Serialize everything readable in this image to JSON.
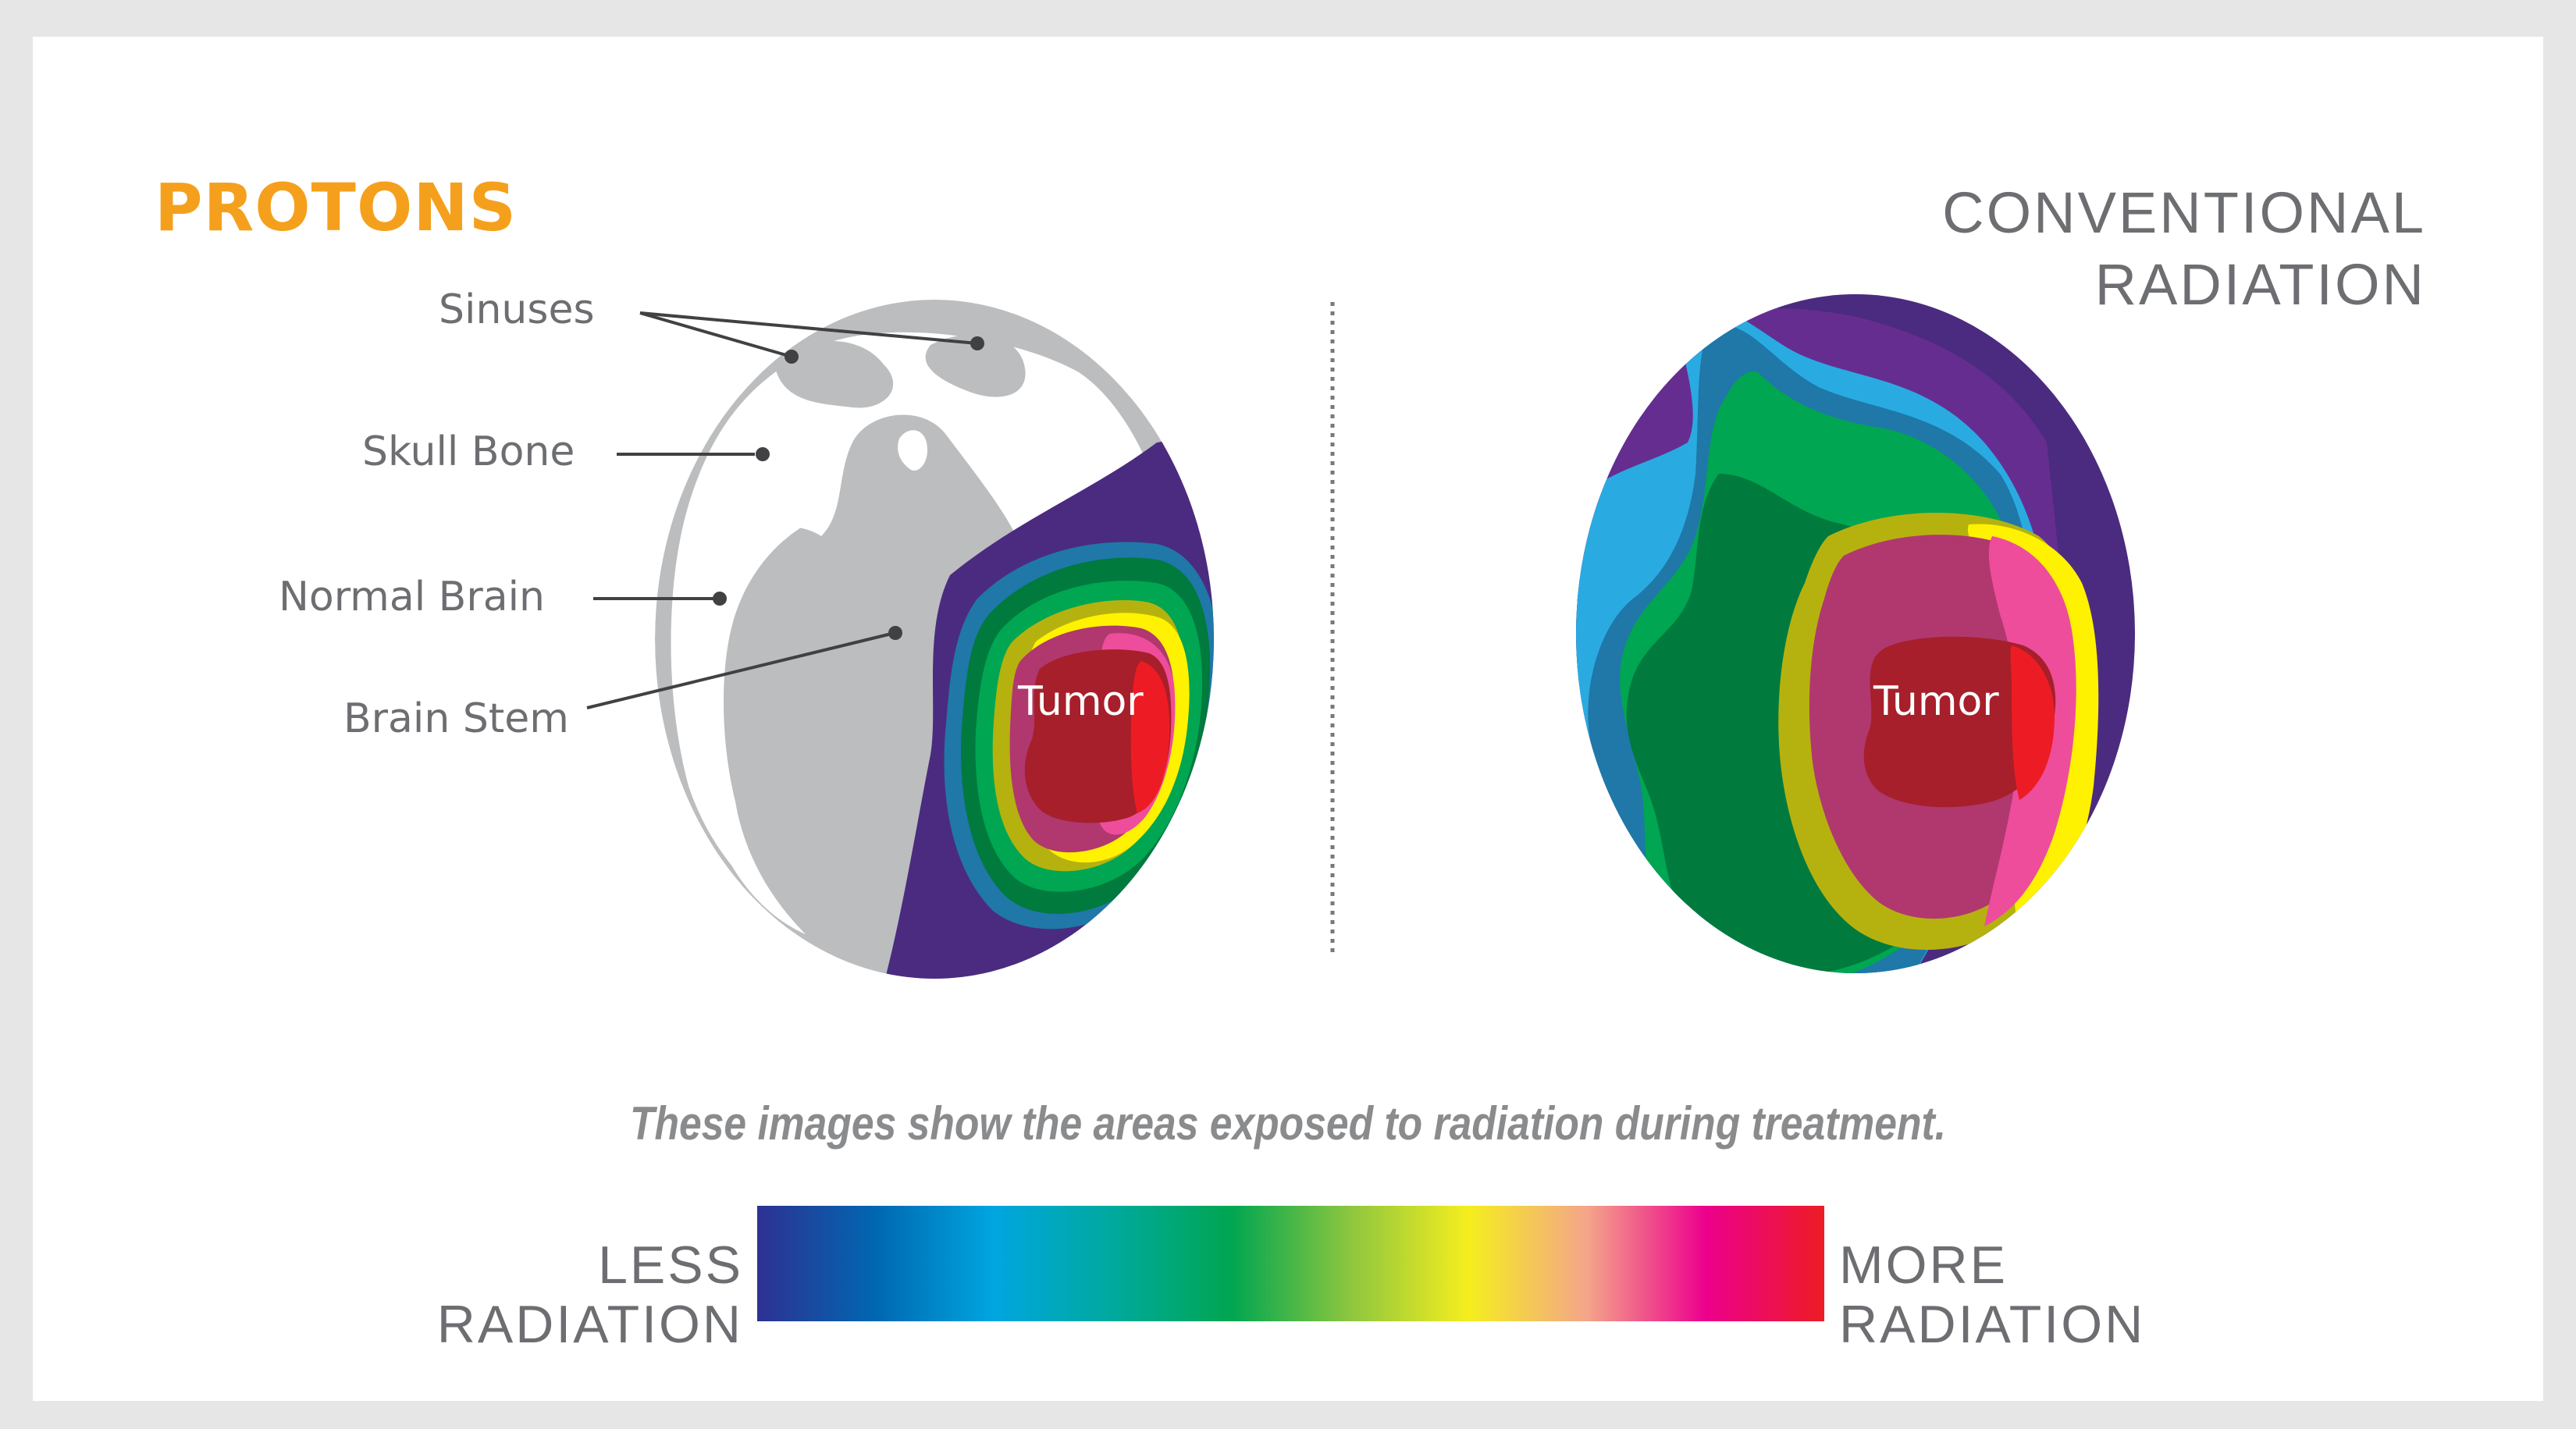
{
  "protons_title": "PROTONS",
  "conventional_title": {
    "line1": "CONVENTIONAL",
    "line2": "RADIATION"
  },
  "labels": {
    "sinuses": "Sinuses",
    "skull_bone": "Skull Bone",
    "normal_brain": "Normal Brain",
    "brain_stem": "Brain Stem"
  },
  "tumor_label": "Tumor",
  "caption": "These images show the areas exposed to radiation during treatment.",
  "legend": {
    "less": {
      "line1": "LESS",
      "line2": "RADIATION"
    },
    "more": {
      "line1": "MORE",
      "line2": "RADIATION"
    },
    "gradient_colors": [
      "#2e3192",
      "#0067b1",
      "#00a6e0",
      "#00a99d",
      "#00a651",
      "#8dc63f",
      "#f5ee1e",
      "#f4a58a",
      "#ec008c",
      "#ed1c24"
    ]
  },
  "colors": {
    "protons_orange": "#f5a01c",
    "text_gray": "#6d6e71",
    "skull_gray": "#bbbdbf",
    "dark_purple": "#452a77",
    "purple": "#662d91",
    "blue": "#29abe2",
    "steel_blue": "#1f78a8",
    "green": "#00a651",
    "dark_green": "#007a3d",
    "olive": "#b5b20f",
    "yellow": "#fff200",
    "magenta": "#b0386f",
    "pink": "#ee4d9b",
    "dark_red": "#a61f2a",
    "red": "#ed1c24"
  }
}
